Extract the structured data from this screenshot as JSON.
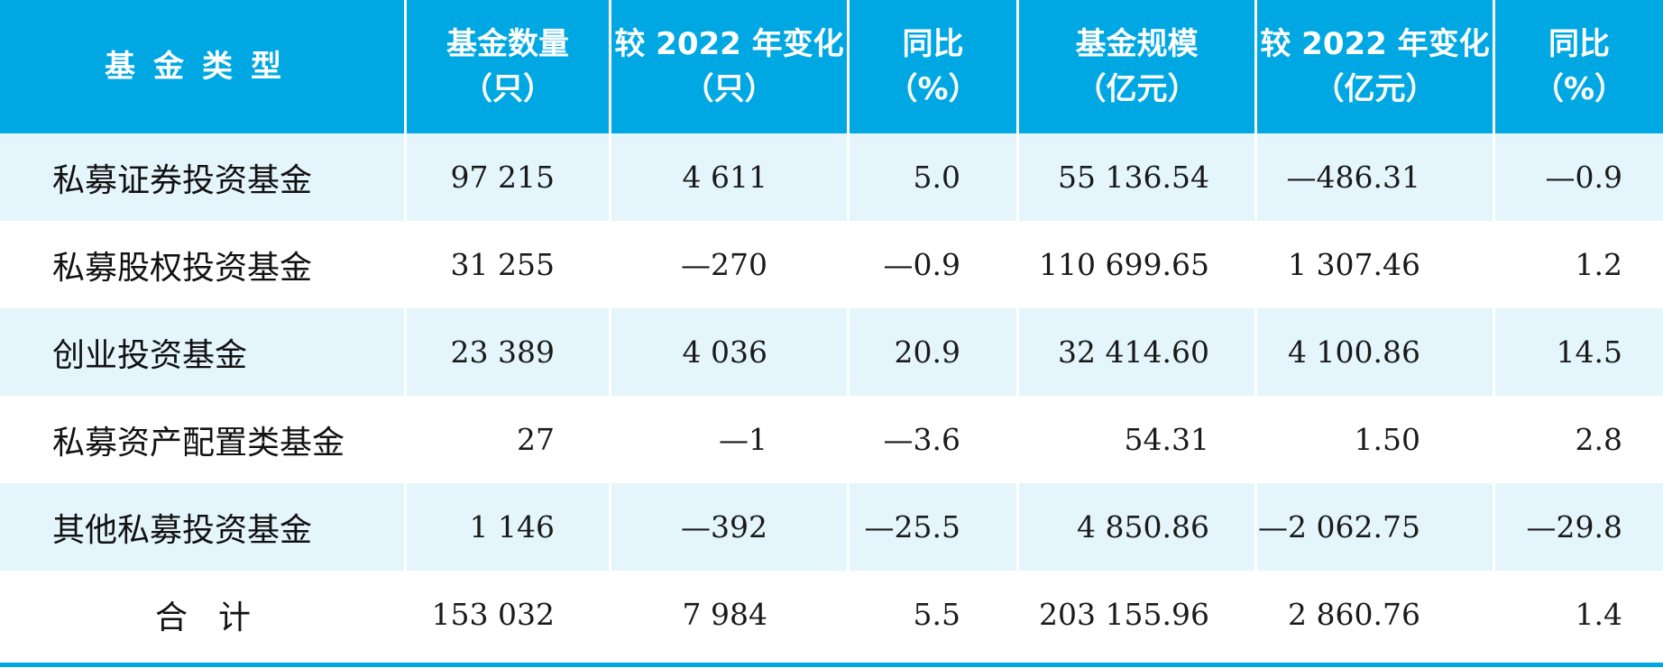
{
  "header": {
    "col0": {
      "line1": "基金类型",
      "line2": ""
    },
    "col1": {
      "line1": "基金数量",
      "line2": "（只）"
    },
    "col2": {
      "line1": "较 2022 年变化",
      "line2": "（只）"
    },
    "col3": {
      "line1": "同比",
      "line2": "（%）"
    },
    "col4": {
      "line1": "基金规模",
      "line2": "（亿元）"
    },
    "col5": {
      "line1": "较 2022 年变化",
      "line2": "（亿元）"
    },
    "col6": {
      "line1": "同比",
      "line2": "（%）"
    }
  },
  "rows": [
    {
      "name": "私募证券投资基金",
      "count": "97 215",
      "count_change": "4 611",
      "count_yoy": "5.0",
      "scale": "55 136.54",
      "scale_change": "—486.31",
      "scale_yoy": "—0.9"
    },
    {
      "name": "私募股权投资基金",
      "count": "31 255",
      "count_change": "—270",
      "count_yoy": "—0.9",
      "scale": "110 699.65",
      "scale_change": "1 307.46",
      "scale_yoy": "1.2"
    },
    {
      "name": "创业投资基金",
      "count": "23 389",
      "count_change": "4 036",
      "count_yoy": "20.9",
      "scale": "32 414.60",
      "scale_change": "4 100.86",
      "scale_yoy": "14.5"
    },
    {
      "name": "私募资产配置类基金",
      "count": "27",
      "count_change": "—1",
      "count_yoy": "—3.6",
      "scale": "54.31",
      "scale_change": "1.50",
      "scale_yoy": "2.8"
    },
    {
      "name": "其他私募投资基金",
      "count": "1 146",
      "count_change": "—392",
      "count_yoy": "—25.5",
      "scale": "4 850.86",
      "scale_change": "—2 062.75",
      "scale_yoy": "—29.8"
    },
    {
      "name": "合计",
      "count": "153 032",
      "count_change": "7 984",
      "count_yoy": "5.5",
      "scale": "203 155.96",
      "scale_change": "2 860.76",
      "scale_yoy": "1.4"
    }
  ],
  "colors": {
    "header_bg": "#00a8e3",
    "stripe_bg": "#e5f5fc",
    "text": "#1a1a1a"
  }
}
